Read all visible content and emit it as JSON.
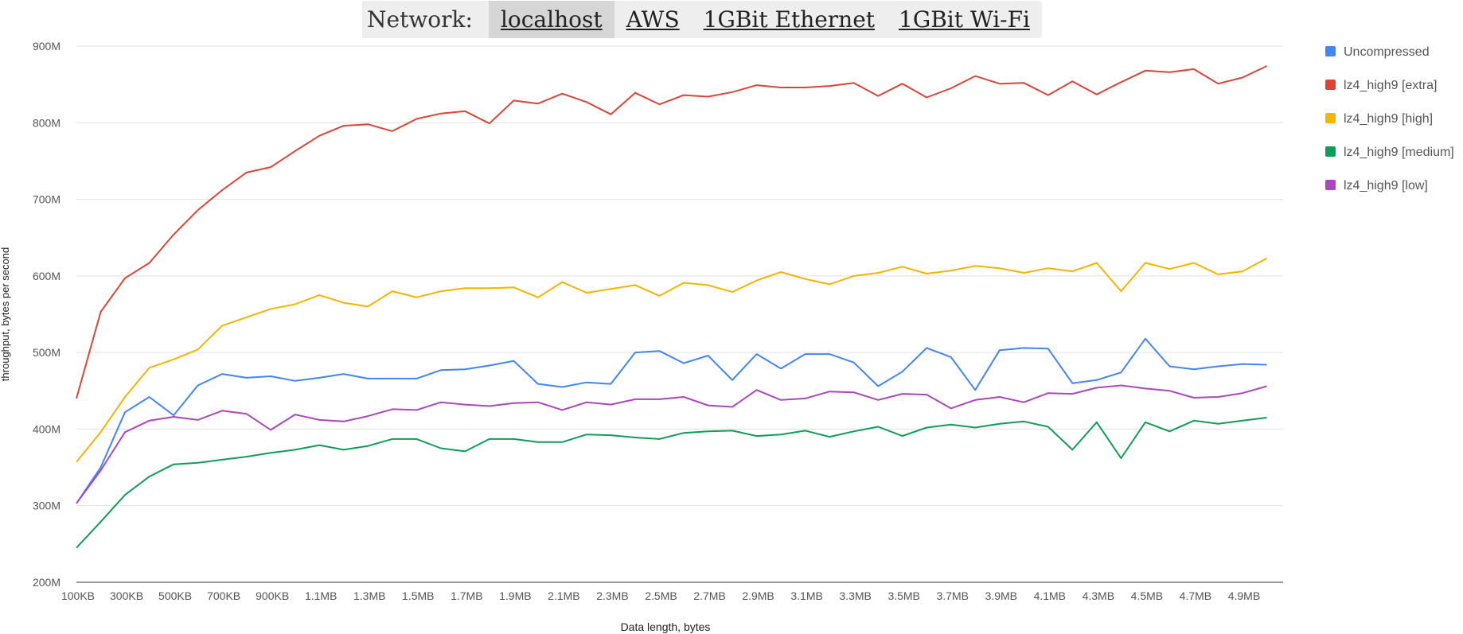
{
  "network_selector": {
    "label": "Network:",
    "tabs": [
      {
        "label": "localhost",
        "active": true
      },
      {
        "label": "AWS",
        "active": false
      },
      {
        "label": "1GBit Ethernet",
        "active": false
      },
      {
        "label": "1GBit Wi-Fi",
        "active": false
      }
    ]
  },
  "chart_data": {
    "type": "line",
    "xlabel": "Data length, bytes",
    "ylabel": "throughput, bytes per second",
    "ylim": [
      200,
      900
    ],
    "yticks": [
      "200M",
      "300M",
      "400M",
      "500M",
      "600M",
      "700M",
      "800M",
      "900M"
    ],
    "x_tick_labels": [
      "100KB",
      "300KB",
      "500KB",
      "700KB",
      "900KB",
      "1.1MB",
      "1.3MB",
      "1.5MB",
      "1.7MB",
      "1.9MB",
      "2.1MB",
      "2.3MB",
      "2.5MB",
      "2.7MB",
      "2.9MB",
      "3.1MB",
      "3.3MB",
      "3.5MB",
      "3.7MB",
      "3.9MB",
      "4.1MB",
      "4.3MB",
      "4.5MB",
      "4.7MB",
      "4.9MB"
    ],
    "x_start_kb": 100,
    "x_step_kb": 100,
    "grid": true,
    "legend_position": "right",
    "series": [
      {
        "name": "Uncompressed",
        "color": "#4285f4",
        "values": [
          303,
          350,
          422,
          442,
          418,
          457,
          472,
          467,
          469,
          463,
          467,
          472,
          466,
          466,
          466,
          477,
          478,
          483,
          489,
          459,
          455,
          461,
          459,
          500,
          502,
          486,
          496,
          464,
          498,
          479,
          498,
          498,
          487,
          456,
          475,
          506,
          494,
          451,
          503,
          506,
          505,
          460,
          464,
          474,
          518,
          482,
          478,
          482,
          485,
          484
        ]
      },
      {
        "name": "lz4_high9 [extra]",
        "color": "#db4437",
        "values": [
          440,
          553,
          597,
          617,
          654,
          686,
          712,
          735,
          742,
          763,
          783,
          796,
          798,
          789,
          805,
          812,
          815,
          799,
          829,
          825,
          838,
          827,
          811,
          839,
          824,
          836,
          834,
          840,
          849,
          846,
          846,
          848,
          852,
          835,
          851,
          833,
          845,
          861,
          851,
          852,
          836,
          854,
          837,
          853,
          868,
          866,
          870,
          851,
          859,
          874
        ]
      },
      {
        "name": "lz4_high9 [high]",
        "color": "#f4b400",
        "values": [
          357,
          396,
          442,
          480,
          491,
          504,
          535,
          546,
          557,
          563,
          575,
          565,
          560,
          580,
          572,
          580,
          584,
          584,
          585,
          572,
          592,
          578,
          583,
          588,
          574,
          591,
          588,
          579,
          594,
          605,
          596,
          589,
          600,
          604,
          612,
          603,
          607,
          613,
          610,
          604,
          610,
          606,
          617,
          580,
          617,
          609,
          617,
          602,
          606,
          623
        ]
      },
      {
        "name": "lz4_high9 [medium]",
        "color": "#0f9d58",
        "values": [
          245,
          279,
          314,
          338,
          354,
          356,
          360,
          364,
          369,
          373,
          379,
          373,
          378,
          387,
          387,
          375,
          371,
          387,
          387,
          383,
          383,
          393,
          392,
          389,
          387,
          395,
          397,
          398,
          391,
          393,
          398,
          390,
          397,
          403,
          391,
          402,
          406,
          402,
          407,
          410,
          403,
          373,
          409,
          362,
          409,
          397,
          411,
          407,
          411,
          415
        ]
      },
      {
        "name": "lz4_high9 [low]",
        "color": "#ab47bc",
        "values": [
          303,
          346,
          396,
          411,
          416,
          412,
          424,
          420,
          399,
          419,
          412,
          410,
          417,
          426,
          425,
          435,
          432,
          430,
          434,
          435,
          425,
          435,
          432,
          439,
          439,
          442,
          431,
          429,
          451,
          438,
          440,
          449,
          448,
          438,
          446,
          445,
          427,
          438,
          442,
          435,
          447,
          446,
          454,
          457,
          453,
          450,
          441,
          442,
          447,
          456
        ]
      }
    ]
  }
}
